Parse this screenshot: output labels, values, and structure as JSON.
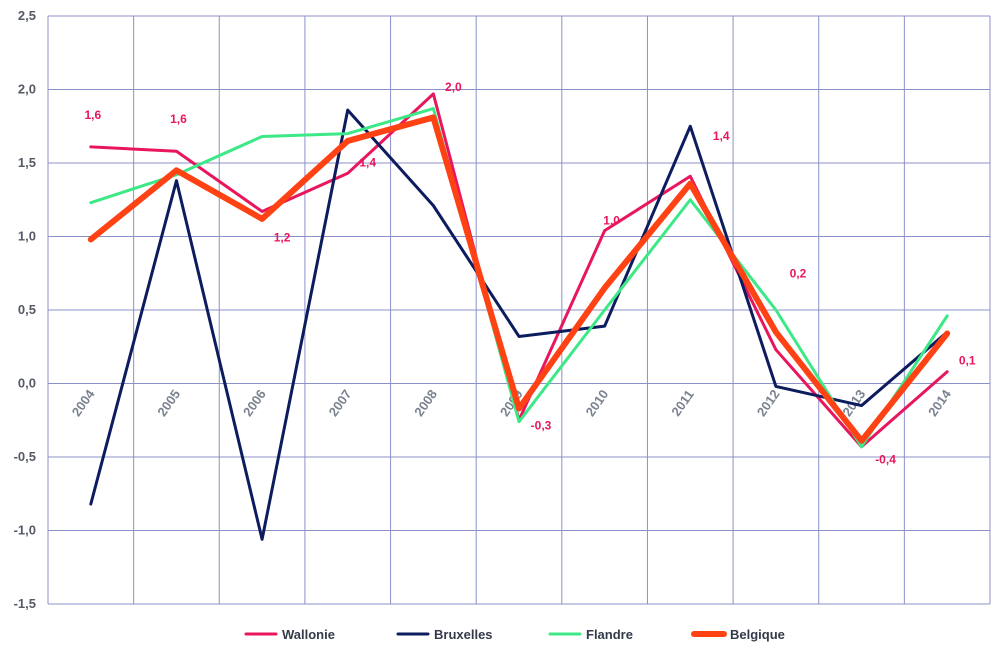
{
  "chart_data": {
    "type": "line",
    "categories": [
      "2004",
      "2005",
      "2006",
      "2007",
      "2008",
      "2009",
      "2010",
      "2011",
      "2012",
      "2013",
      "2014"
    ],
    "ylim": [
      -1.5,
      2.5
    ],
    "y_ticks": [
      "2,5",
      "2,0",
      "1,5",
      "1,0",
      "0,5",
      "0,0",
      "-0,5",
      "-1,0",
      "-1,5"
    ],
    "grid": true,
    "legend_position": "bottom",
    "series": [
      {
        "name": "Wallonie",
        "color": "#e8175d",
        "width": 3,
        "values": [
          1.61,
          1.58,
          1.17,
          1.43,
          1.97,
          -0.25,
          1.04,
          1.41,
          0.23,
          -0.43,
          0.08
        ]
      },
      {
        "name": "Bruxelles",
        "color": "#0d1c5e",
        "width": 3,
        "values": [
          -0.82,
          1.38,
          -1.06,
          1.86,
          1.21,
          0.32,
          0.39,
          1.75,
          -0.02,
          -0.15,
          0.35
        ]
      },
      {
        "name": "Flandre",
        "color": "#3de887",
        "width": 3,
        "values": [
          1.23,
          1.42,
          1.68,
          1.7,
          1.87,
          -0.26,
          0.5,
          1.25,
          0.5,
          -0.43,
          0.46
        ]
      },
      {
        "name": "Belgique",
        "color": "#ff4214",
        "width": 6,
        "values": [
          0.98,
          1.45,
          1.12,
          1.65,
          1.81,
          -0.17,
          0.65,
          1.36,
          0.35,
          -0.39,
          0.34
        ]
      }
    ],
    "annotations": [
      "1,6",
      "1,6",
      "1,2",
      "1,4",
      "2,0",
      "-0,3",
      "1,0",
      "1,4",
      "0,2",
      "-0,4",
      "0,1"
    ]
  }
}
